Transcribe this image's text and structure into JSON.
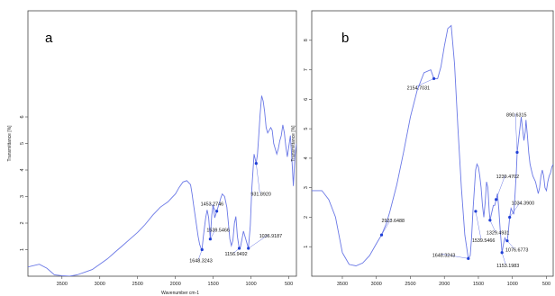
{
  "chart_data": [
    {
      "type": "line",
      "panel_label": "a",
      "ylabel": "Transmittance [%]",
      "xlabel": "Wavenumber cm-1",
      "xlim": [
        3950,
        400
      ],
      "ylim": [
        0,
        10
      ],
      "xticks": [
        3500,
        3000,
        2500,
        2000,
        1500,
        1000,
        500
      ],
      "yticks": [
        1,
        2,
        3,
        4,
        5,
        6
      ],
      "x": [
        3950,
        3800,
        3700,
        3600,
        3500,
        3400,
        3300,
        3200,
        3100,
        3000,
        2900,
        2800,
        2700,
        2600,
        2500,
        2400,
        2300,
        2200,
        2100,
        2000,
        1950,
        1900,
        1850,
        1800,
        1780,
        1760,
        1740,
        1720,
        1700,
        1680,
        1660,
        1648,
        1630,
        1600,
        1580,
        1560,
        1539,
        1520,
        1500,
        1480,
        1453,
        1420,
        1400,
        1380,
        1350,
        1320,
        1300,
        1280,
        1260,
        1240,
        1220,
        1200,
        1180,
        1156,
        1140,
        1120,
        1100,
        1080,
        1060,
        1035,
        1010,
        990,
        960,
        932,
        915,
        900,
        880,
        860,
        840,
        820,
        800,
        780,
        760,
        740,
        720,
        700,
        680,
        660,
        640,
        620,
        600,
        580,
        560,
        540,
        520,
        500,
        480,
        460,
        440,
        420,
        400
      ],
      "y": [
        0.35,
        0.45,
        0.3,
        0.05,
        0.02,
        0.0,
        0.05,
        0.15,
        0.25,
        0.45,
        0.65,
        0.9,
        1.15,
        1.4,
        1.65,
        1.95,
        2.3,
        2.6,
        2.8,
        3.1,
        3.35,
        3.55,
        3.6,
        3.45,
        3.1,
        2.7,
        2.3,
        1.9,
        1.5,
        1.2,
        1.05,
        1.0,
        1.5,
        2.2,
        2.5,
        2.2,
        1.4,
        2.3,
        2.7,
        2.2,
        2.45,
        2.75,
        2.95,
        3.1,
        3.0,
        2.6,
        2.0,
        1.4,
        1.15,
        1.35,
        2.0,
        2.25,
        1.5,
        1.05,
        1.1,
        1.4,
        1.7,
        1.5,
        1.3,
        1.05,
        1.9,
        3.3,
        4.6,
        4.25,
        4.6,
        5.2,
        6.1,
        6.8,
        6.6,
        6.2,
        5.6,
        5.4,
        5.5,
        5.6,
        5.5,
        5.0,
        4.8,
        4.6,
        4.8,
        5.1,
        5.3,
        5.7,
        5.4,
        4.9,
        4.5,
        4.9,
        5.3,
        4.4,
        3.4,
        4.5,
        5.0
      ],
      "annotations": [
        {
          "label": "931.8920",
          "x": 932,
          "y": 4.25
        },
        {
          "label": "1453.2746",
          "x": 1453,
          "y": 2.45
        },
        {
          "label": "1539.5466",
          "x": 1539,
          "y": 1.4
        },
        {
          "label": "1036.9187",
          "x": 1035,
          "y": 1.05
        },
        {
          "label": "1156.9492",
          "x": 1156,
          "y": 1.05
        },
        {
          "label": "1648.3243",
          "x": 1648,
          "y": 1.0
        }
      ]
    },
    {
      "type": "line",
      "panel_label": "b",
      "ylabel": "Transmittance [%]",
      "xlabel": "",
      "xlim": [
        3950,
        400
      ],
      "ylim": [
        0,
        9
      ],
      "xticks": [
        3500,
        3000,
        2500,
        2000,
        1500,
        1000,
        500
      ],
      "yticks": [
        1,
        2,
        3,
        4,
        5,
        6,
        7,
        8
      ],
      "x": [
        3950,
        3800,
        3700,
        3600,
        3500,
        3400,
        3300,
        3200,
        3100,
        3000,
        2923,
        2850,
        2800,
        2700,
        2600,
        2500,
        2400,
        2300,
        2200,
        2154,
        2100,
        2050,
        2000,
        1950,
        1900,
        1850,
        1800,
        1750,
        1700,
        1648,
        1620,
        1600,
        1580,
        1560,
        1540,
        1520,
        1500,
        1480,
        1460,
        1440,
        1420,
        1400,
        1380,
        1360,
        1340,
        1329,
        1300,
        1280,
        1260,
        1239,
        1220,
        1200,
        1180,
        1153,
        1130,
        1110,
        1090,
        1076,
        1060,
        1040,
        1020,
        1000,
        980,
        960,
        940,
        930,
        910,
        890,
        870,
        850,
        830,
        810,
        800,
        780,
        760,
        740,
        720,
        700,
        680,
        660,
        640,
        620,
        600,
        580,
        560,
        540,
        520,
        500,
        480,
        460,
        440,
        420,
        400
      ],
      "y": [
        2.9,
        2.9,
        2.6,
        2.0,
        0.8,
        0.4,
        0.35,
        0.45,
        0.7,
        1.1,
        1.4,
        1.8,
        2.2,
        3.1,
        4.2,
        5.4,
        6.3,
        6.9,
        7.0,
        6.7,
        6.7,
        7.1,
        7.8,
        8.4,
        8.5,
        7.2,
        5.0,
        3.0,
        1.4,
        0.6,
        0.7,
        1.3,
        2.2,
        2.9,
        3.6,
        3.8,
        3.7,
        3.4,
        3.0,
        2.4,
        2.0,
        2.5,
        3.2,
        3.0,
        2.2,
        1.9,
        2.2,
        2.4,
        2.4,
        2.6,
        2.8,
        2.3,
        1.6,
        0.8,
        1.1,
        1.3,
        1.2,
        1.2,
        1.5,
        2.0,
        2.3,
        2.2,
        2.1,
        2.8,
        3.6,
        4.2,
        4.6,
        5.0,
        5.4,
        5.0,
        4.6,
        4.9,
        5.3,
        4.8,
        4.2,
        3.8,
        3.6,
        3.4,
        3.3,
        3.2,
        3.0,
        2.8,
        3.0,
        3.4,
        3.6,
        3.4,
        3.0,
        2.9,
        3.2,
        3.4,
        3.5,
        3.7,
        3.8
      ],
      "annotations": [
        {
          "label": "2154.7031",
          "x": 2154,
          "y": 6.7
        },
        {
          "label": "2923.6488",
          "x": 2923,
          "y": 1.4
        },
        {
          "label": "1648.3243",
          "x": 1648,
          "y": 0.6
        },
        {
          "label": "1539.5466",
          "x": 1540,
          "y": 2.2
        },
        {
          "label": "1329.4931",
          "x": 1329,
          "y": 1.9
        },
        {
          "label": "1239.4702",
          "x": 1239,
          "y": 2.6
        },
        {
          "label": "1153.1983",
          "x": 1153,
          "y": 0.8
        },
        {
          "label": "1076.6773",
          "x": 1076,
          "y": 1.2
        },
        {
          "label": "1034.3900",
          "x": 1040,
          "y": 2.0
        },
        {
          "label": "890.6315",
          "x": 930,
          "y": 4.2
        }
      ]
    }
  ]
}
